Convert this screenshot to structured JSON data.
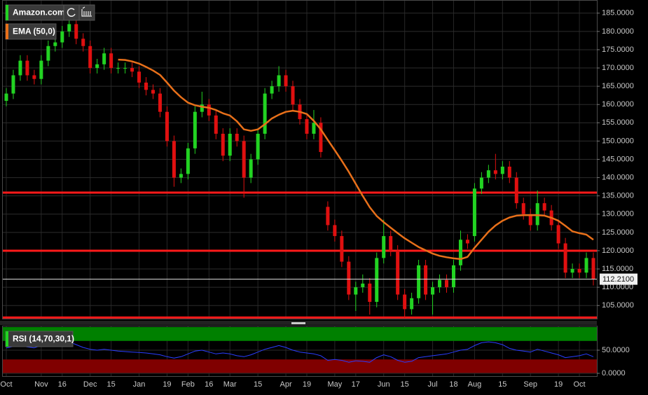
{
  "chart_data": [
    {
      "type": "candlestick",
      "title": "Amazon.com",
      "categories": [
        "Oct",
        null,
        null,
        null,
        null,
        "Nov",
        null,
        null,
        "16",
        null,
        null,
        null,
        "Dec",
        null,
        null,
        "15",
        null,
        null,
        null,
        "Jan",
        null,
        null,
        null,
        "19",
        null,
        null,
        "Feb",
        null,
        null,
        "16",
        null,
        null,
        "Mar",
        null,
        null,
        null,
        "15",
        null,
        null,
        null,
        "Apr",
        null,
        null,
        "19",
        null,
        null,
        null,
        "May",
        null,
        null,
        "17",
        null,
        null,
        null,
        "Jun",
        null,
        null,
        "15",
        null,
        null,
        null,
        "Jul",
        null,
        null,
        "18",
        null,
        null,
        "Aug",
        null,
        null,
        null,
        "15",
        null,
        null,
        null,
        "Sep",
        null,
        null,
        null,
        "19",
        null,
        null,
        "Oct",
        null,
        null
      ],
      "open": [
        161,
        163,
        168,
        172,
        168,
        167,
        172,
        176,
        177,
        180,
        182,
        178,
        176,
        170,
        171,
        174,
        170,
        170,
        170,
        169,
        166,
        164,
        163,
        158,
        150,
        140,
        141,
        148,
        158,
        160,
        157,
        152,
        146,
        152,
        150,
        140,
        145,
        152,
        163,
        165,
        168,
        165,
        160,
        156,
        152,
        155,
        132,
        127,
        124,
        117,
        108,
        110,
        111,
        106,
        118,
        124,
        120,
        108,
        104,
        107,
        116,
        108,
        110,
        112,
        110,
        116,
        123,
        124,
        137,
        140,
        142,
        141,
        143,
        140,
        133,
        130,
        127,
        133,
        131,
        127,
        122,
        114,
        115,
        114,
        118
      ],
      "high": [
        164.5,
        169.5,
        173.5,
        173.5,
        169.5,
        173.5,
        177.5,
        178.5,
        181.5,
        187,
        183.5,
        179.5,
        177.5,
        172.5,
        175.5,
        175.5,
        171.5,
        171.5,
        171.5,
        170.5,
        167.5,
        165.5,
        164.5,
        159.5,
        151.5,
        142.5,
        149.5,
        159.5,
        163.5,
        161.5,
        158.5,
        153.5,
        153.5,
        153.5,
        151.5,
        146.5,
        153.5,
        164.5,
        166.5,
        170.5,
        169.5,
        166.5,
        161.5,
        157.5,
        158.5,
        156.5,
        133.5,
        128.5,
        125.5,
        118.5,
        111.5,
        113.5,
        112.5,
        119.5,
        128.5,
        125.5,
        121.5,
        109.5,
        108.5,
        117.5,
        117.5,
        111.5,
        113.5,
        113.5,
        117.5,
        125.5,
        124.5,
        138.5,
        141.5,
        143.5,
        146.5,
        144.5,
        144.5,
        141.5,
        134.5,
        131.5,
        136.5,
        134.5,
        132.5,
        128.5,
        123.5,
        116.5,
        116.5,
        119.5,
        119.5
      ],
      "low": [
        159.5,
        161.5,
        166.5,
        166.5,
        165.5,
        165.5,
        170.5,
        174.5,
        175.5,
        178.5,
        176.5,
        174.5,
        168.5,
        168.5,
        169.5,
        168.5,
        168.5,
        168.5,
        167.5,
        164.5,
        162.5,
        161.5,
        156.5,
        148.5,
        137.5,
        138.5,
        139.5,
        146.5,
        156.5,
        155.5,
        150.5,
        144.5,
        144.5,
        148.5,
        134.5,
        138.5,
        143.5,
        150.5,
        161.5,
        163.5,
        163.5,
        158.5,
        154.5,
        150.5,
        150.5,
        145.5,
        125.5,
        122.5,
        115.5,
        106.5,
        103.5,
        108.5,
        102.5,
        104.5,
        116.5,
        118.5,
        106.5,
        101.5,
        102.5,
        105.5,
        106.5,
        102.5,
        108.5,
        108.5,
        108.5,
        114.5,
        120.5,
        122.5,
        135.5,
        138.5,
        139.5,
        139.5,
        138.5,
        131.5,
        128.5,
        125.5,
        125.5,
        129.5,
        125.5,
        120.5,
        112.5,
        112.5,
        112.5,
        112.5,
        110.5
      ],
      "close": [
        163,
        168,
        172,
        168,
        167,
        172,
        176,
        177,
        180,
        182,
        178,
        176,
        170,
        171,
        174,
        170,
        170,
        170,
        169,
        166,
        164,
        163,
        158,
        150,
        140,
        141,
        148,
        158,
        160,
        157,
        152,
        146,
        152,
        150,
        140,
        145,
        152,
        163,
        165,
        168,
        165,
        160,
        156,
        152,
        155,
        147,
        127,
        124,
        117,
        108,
        110,
        111,
        106,
        118,
        124,
        120,
        108,
        104,
        107,
        116,
        108,
        110,
        112,
        110,
        116,
        123,
        122,
        137,
        140,
        142,
        141,
        143,
        140,
        133,
        130,
        127,
        133,
        131,
        127,
        122,
        114,
        115,
        114,
        118,
        112.21
      ],
      "up_color": "#22d322",
      "down_color": "#e01010",
      "ema": {
        "name": "EMA (50,0)",
        "color": "#e8701a",
        "values": [
          null,
          null,
          null,
          null,
          null,
          null,
          null,
          null,
          null,
          null,
          null,
          null,
          null,
          null,
          null,
          null,
          172.3,
          172.2,
          171.8,
          171.2,
          170.3,
          169.3,
          168.1,
          166.0,
          163.8,
          162.0,
          160.5,
          159.8,
          159.4,
          159.1,
          158.5,
          157.6,
          157.0,
          155.4,
          153.2,
          152.8,
          153.2,
          154.6,
          156.2,
          157.2,
          158.0,
          158.3,
          158.0,
          157.4,
          155.5,
          153.2,
          150.3,
          147.5,
          144.6,
          141.6,
          138.3,
          135.0,
          131.9,
          129.5,
          127.8,
          126.3,
          124.8,
          123.4,
          122.2,
          121.0,
          120.1,
          119.2,
          118.6,
          118.2,
          117.9,
          117.7,
          118.3,
          120.8,
          123.0,
          125.2,
          126.9,
          128.2,
          129.1,
          129.6,
          129.7,
          129.7,
          129.7,
          129.6,
          129.0,
          128.2,
          126.8,
          125.3,
          124.8,
          124.4,
          123.0
        ]
      },
      "levels": [
        135.9,
        120,
        101.7
      ],
      "level_color": "#ff1a1a",
      "last_price": {
        "value": 112.21,
        "label": "112.2100"
      },
      "ylim": [
        101.4,
        188.6
      ],
      "yticks": [
        {
          "value": 105,
          "label": "105.0000"
        },
        {
          "value": 110,
          "label": "110.0000"
        },
        {
          "value": 115,
          "label": "115.0000"
        },
        {
          "value": 120,
          "label": "120.0000"
        },
        {
          "value": 125,
          "label": "125.0000"
        },
        {
          "value": 130,
          "label": "130.0000"
        },
        {
          "value": 135,
          "label": "135.0000"
        },
        {
          "value": 140,
          "label": "140.0000"
        },
        {
          "value": 145,
          "label": "145.0000"
        },
        {
          "value": 150,
          "label": "150.0000"
        },
        {
          "value": 155,
          "label": "155.0000"
        },
        {
          "value": 160,
          "label": "160.0000"
        },
        {
          "value": 165,
          "label": "165.0000"
        },
        {
          "value": 170,
          "label": "170.0000"
        },
        {
          "value": 175,
          "label": "175.0000"
        },
        {
          "value": 180,
          "label": "180.0000"
        },
        {
          "value": 185,
          "label": "185.0000"
        }
      ],
      "grid": true
    },
    {
      "type": "line",
      "title": "RSI (14,70,30,1)",
      "color": "#2a3dff",
      "values": [
        55,
        58,
        60,
        57,
        55,
        60,
        62,
        64,
        66,
        68,
        62,
        56,
        52,
        50,
        52,
        50,
        48,
        47,
        46,
        45,
        44,
        42,
        40,
        36,
        33,
        36,
        42,
        48,
        50,
        46,
        42,
        44,
        42,
        38,
        36,
        40,
        46,
        52,
        56,
        60,
        56,
        50,
        46,
        44,
        42,
        38,
        28,
        30,
        28,
        24,
        27,
        26,
        24,
        34,
        40,
        36,
        28,
        24,
        26,
        34,
        36,
        38,
        40,
        42,
        46,
        50,
        52,
        60,
        66,
        68,
        66,
        62,
        54,
        50,
        48,
        46,
        52,
        48,
        44,
        40,
        34,
        36,
        38,
        42,
        36
      ],
      "bands": [
        {
          "from": 70,
          "to": 100,
          "color": "#008000"
        },
        {
          "from": 0,
          "to": 30,
          "color": "#800000"
        }
      ],
      "ylim": [
        -6,
        101.5
      ],
      "yticks": [
        {
          "value": 50,
          "label": "50.0000"
        },
        {
          "value": 0,
          "label": "0.0000"
        }
      ],
      "grid": true
    }
  ]
}
